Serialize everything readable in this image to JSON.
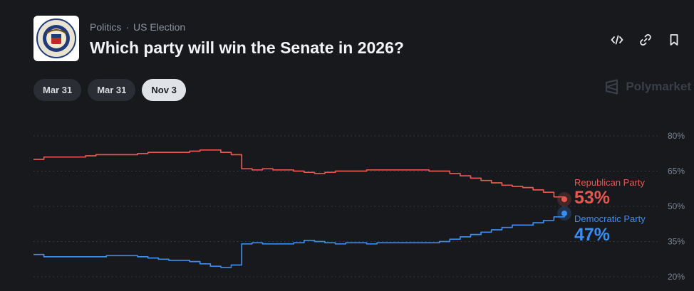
{
  "breadcrumb": {
    "category": "Politics",
    "separator": "·",
    "subcategory": "US Election"
  },
  "title": "Which party will win the Senate in 2026?",
  "actions": [
    {
      "name": "embed-icon"
    },
    {
      "name": "link-icon"
    },
    {
      "name": "bookmark-icon"
    }
  ],
  "date_tabs": [
    "Mar 31",
    "Mar 31",
    "Nov 3"
  ],
  "active_tab": 2,
  "brand": {
    "name": "Polymarket"
  },
  "colors": {
    "background": "#17191d",
    "republican": "#e5584f",
    "democratic": "#3b8cf0",
    "grid": "#3a3f46",
    "tick": "#7d8590"
  },
  "chart_data": {
    "type": "line",
    "title": "",
    "xlabel": "",
    "ylabel": "",
    "ylim": [
      20,
      80
    ],
    "yticks": [
      80,
      65,
      50,
      35,
      20
    ],
    "ytick_labels": [
      "80%",
      "65%",
      "50%",
      "35%",
      "20%"
    ],
    "grid": true,
    "legend": "end-of-line labels",
    "series": [
      {
        "name": "Republican Party",
        "label": "53%",
        "color": "#e5584f",
        "values": [
          70,
          71,
          71,
          71,
          71,
          71.5,
          72,
          72,
          72,
          72,
          72.5,
          73,
          73,
          73,
          73,
          73.5,
          74,
          74,
          73,
          72,
          66,
          65.5,
          66,
          65.5,
          65.5,
          65,
          64.5,
          64,
          64.5,
          65,
          65,
          65,
          65.5,
          65.5,
          65.5,
          65.5,
          65.5,
          65.5,
          65,
          65,
          64,
          63,
          62,
          61,
          60,
          59,
          58.5,
          58,
          57,
          56,
          54,
          53
        ]
      },
      {
        "name": "Democratic Party",
        "label": "47%",
        "color": "#3b8cf0",
        "values": [
          29.5,
          28.5,
          28.5,
          28.5,
          28.5,
          28.5,
          28.5,
          29,
          29,
          29,
          28.5,
          28,
          27.5,
          27,
          27,
          26.5,
          25.5,
          24.5,
          24,
          25,
          34,
          34.5,
          34,
          34,
          34,
          34.5,
          35.5,
          35,
          34.5,
          34,
          34.5,
          34.5,
          34,
          34.5,
          34.5,
          34.5,
          34.5,
          34.5,
          34.5,
          35,
          36,
          37,
          38,
          39,
          40,
          41,
          42,
          42,
          43,
          44,
          45.5,
          47
        ]
      }
    ]
  }
}
